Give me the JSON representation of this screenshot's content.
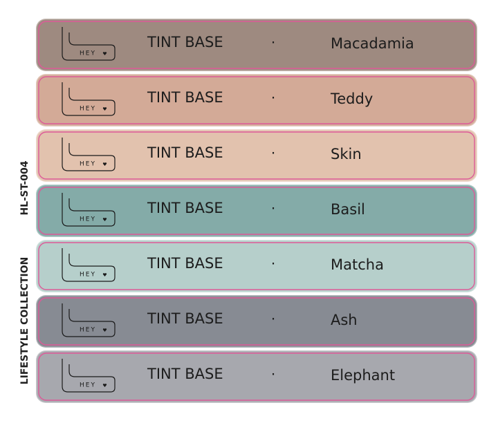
{
  "side_labels": [
    "HL-ST-004",
    "LIFESTYLE COLLECTION"
  ],
  "rows": [
    {
      "logo": "HEY",
      "product": "TINT BASE",
      "separator": "·",
      "name": "Macadamia",
      "color": "#9e8a80"
    },
    {
      "logo": "HEY",
      "product": "TINT BASE",
      "separator": "·",
      "name": "Teddy",
      "color": "#d3aa97"
    },
    {
      "logo": "HEY",
      "product": "TINT BASE",
      "separator": "·",
      "name": "Skin",
      "color": "#e2c2ae"
    },
    {
      "logo": "HEY",
      "product": "TINT BASE",
      "separator": "·",
      "name": "Basil",
      "color": "#84aba8"
    },
    {
      "logo": "HEY",
      "product": "TINT BASE",
      "separator": "·",
      "name": "Matcha",
      "color": "#b6cfcb"
    },
    {
      "logo": "HEY",
      "product": "TINT BASE",
      "separator": "·",
      "name": "Ash",
      "color": "#878b93"
    },
    {
      "logo": "HEY",
      "product": "TINT BASE",
      "separator": "·",
      "name": "Elephant",
      "color": "#a7a8ae"
    }
  ]
}
